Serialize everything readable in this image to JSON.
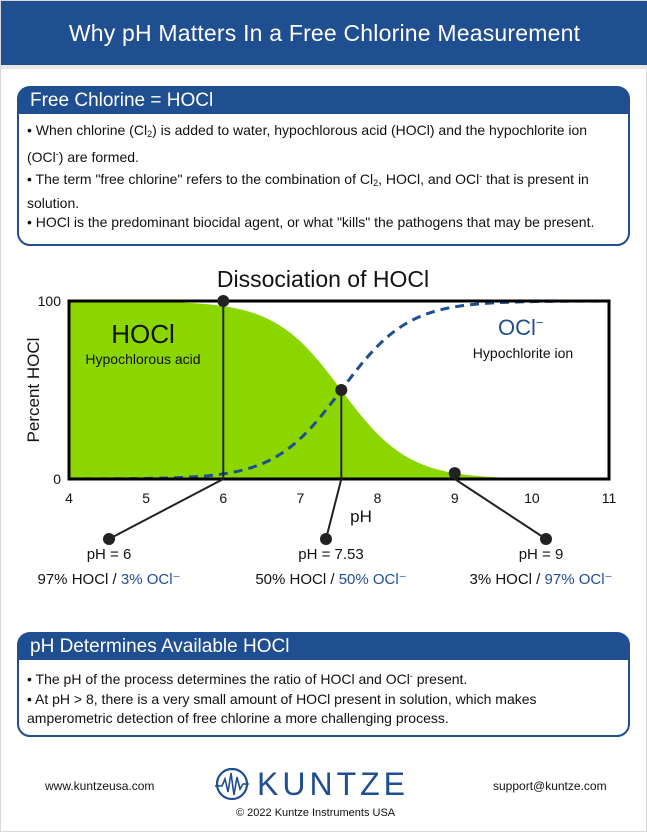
{
  "page_title": "Why pH Matters In a Free Chlorine Measurement",
  "section1": {
    "heading": "Free Chlorine = HOCl",
    "bullets": [
      {
        "a": "• When chlorine (Cl",
        "sub": "2",
        "b": ") is added to water, hypochlorous acid (HOCl) and the hypochlorite ion (OCl",
        "sup": "-",
        "c": ") are formed."
      },
      {
        "a": "• The term \"free chlorine\" refers to the combination of Cl",
        "sub": "2",
        "b": ", HOCl, and OCl",
        "sup": "-",
        "c": " that is present in solution."
      },
      {
        "a": "• HOCl is the predominant biocidal agent, or what \"kills\" the pathogens that may be present."
      }
    ]
  },
  "chart_data": {
    "type": "area",
    "title": "Dissociation of HOCl",
    "xlabel": "pH",
    "ylabel": "Percent HOCl",
    "xlim": [
      4,
      11
    ],
    "ylim": [
      0,
      100
    ],
    "x_ticks": [
      "4",
      "5",
      "6",
      "7",
      "8",
      "9",
      "10",
      "11"
    ],
    "y_ticks": [
      "0",
      "100"
    ],
    "pKa": 7.53,
    "series": [
      {
        "name": "HOCl",
        "style": "filled area",
        "color": "#8cd600",
        "x": [
          4,
          5,
          5.5,
          6,
          6.5,
          7,
          7.25,
          7.53,
          7.75,
          8,
          8.5,
          9,
          9.5,
          10,
          11
        ],
        "y": [
          100,
          99.7,
          99,
          97,
          91.5,
          77,
          65.6,
          50,
          37.6,
          25.3,
          9.7,
          3.3,
          1.1,
          0.3,
          0
        ]
      },
      {
        "name": "OCl⁻",
        "style": "dashed line",
        "color": "#1f4e91",
        "x": [
          4,
          5,
          5.5,
          6,
          6.5,
          7,
          7.25,
          7.53,
          7.75,
          8,
          8.5,
          9,
          9.5,
          10,
          11
        ],
        "y": [
          0,
          0.3,
          1,
          3,
          8.5,
          23,
          34.4,
          50,
          62.4,
          74.7,
          90.3,
          96.7,
          98.9,
          99.7,
          100
        ]
      }
    ],
    "labels": {
      "hocl_name": "HOCl",
      "hocl_desc": "Hypochlorous acid",
      "ocl_name": "OCl",
      "ocl_sup": "−",
      "ocl_desc": "Hypochlorite ion"
    },
    "callouts": [
      {
        "ph": 6,
        "label": "pH = 6",
        "hocl_text": "97% HOCl",
        "sep": " / ",
        "ocl_text": "3% OCl⁻"
      },
      {
        "ph": 7.53,
        "label": "pH = 7.53",
        "hocl_text": "50% HOCl",
        "sep": " / ",
        "ocl_text": "50% OCl⁻"
      },
      {
        "ph": 9,
        "label": "pH = 9",
        "hocl_text": "3% HOCl",
        "sep": " / ",
        "ocl_text": "97% OCl⁻"
      }
    ]
  },
  "section2": {
    "heading": "pH Determines Available HOCl",
    "bullets": [
      {
        "a": "• The pH of the process determines the ratio of HOCl and OCl",
        "sup": "-",
        "c": " present."
      },
      {
        "a": "• At pH > 8, there is a very small amount of HOCl present in solution, which makes amperometric detection of free chlorine a more challenging process."
      }
    ]
  },
  "footer": {
    "website": "www.kuntzeusa.com",
    "logo_text": "KUNTZE",
    "copyright": "© 2022 Kuntze Instruments USA",
    "email": "support@kuntze.com"
  },
  "colors": {
    "brand_blue": "#1f4e91",
    "hocl_green": "#8cd600"
  },
  "icons": {
    "logo_mark": "kuntze-waveform-circle-icon"
  }
}
